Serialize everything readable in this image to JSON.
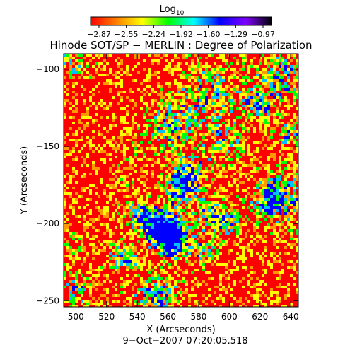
{
  "colorbar": {
    "label": "Log",
    "label_subscript": "10",
    "ticks": [
      "−2.87",
      "−2.55",
      "−2.24",
      "−1.92",
      "−1.60",
      "−1.29",
      "−0.97"
    ],
    "colors": [
      "#ff0000",
      "#ff7f00",
      "#ffff00",
      "#00ff00",
      "#00ffff",
      "#0000ff",
      "#7f00ff",
      "#000000"
    ]
  },
  "title": "Hinode SOT/SP − MERLIN : Degree of Polarization",
  "chart_data": {
    "type": "heatmap",
    "title": "Hinode SOT/SP − MERLIN : Degree of Polarization",
    "xlabel": "X (Arcseconds)",
    "ylabel": "Y (Arcseconds)",
    "xlim": [
      492,
      645
    ],
    "ylim": [
      -254,
      -90
    ],
    "x_ticks": [
      500,
      520,
      540,
      560,
      580,
      600,
      620,
      640
    ],
    "y_ticks": [
      -100,
      -150,
      -200,
      -250
    ],
    "value_range": [
      -2.87,
      -0.97
    ],
    "value_scale": "log10",
    "dominant_color": "#ff0000",
    "secondary_colors": [
      "#ffff00",
      "#00ff00",
      "#0000ff"
    ]
  },
  "footer": {
    "timestamp": "9−Oct−2007 07:20:05.518"
  }
}
